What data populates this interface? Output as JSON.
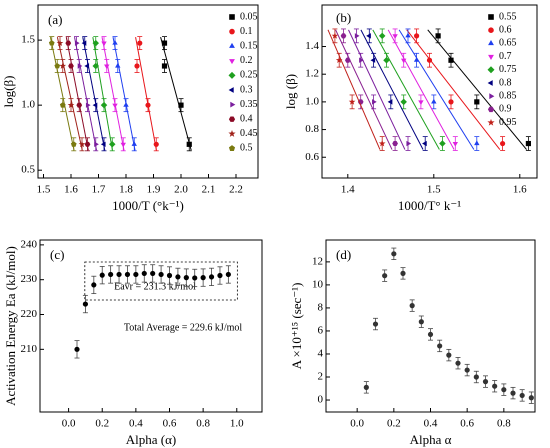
{
  "chart_data": [
    {
      "type": "scatter",
      "label": "(a)",
      "xlabel": "1000/T (°k⁻¹)",
      "ylabel": "log(β)",
      "xlim": [
        1.48,
        2.28
      ],
      "ylim": [
        0.44,
        1.77
      ],
      "xticks": [
        1.5,
        1.6,
        1.7,
        1.8,
        1.9,
        {
          "value": 2,
          "label": "2.0"
        },
        2.1,
        2.2
      ],
      "yticks": [
        0.5,
        {
          "value": 1,
          "label": "1.0"
        },
        1.5
      ],
      "yerr": 0.05,
      "fit": true,
      "legend": "upper right",
      "series": [
        {
          "name": "0.05",
          "color": "#000000",
          "marker": "square",
          "x": [
            1.94,
            1.94,
            2.0,
            2.03
          ],
          "values": [
            1.477,
            1.301,
            1.0,
            0.699
          ]
        },
        {
          "name": "0.1",
          "color": "#e8161b",
          "marker": "circle",
          "x": [
            1.85,
            1.84,
            1.88,
            1.91
          ],
          "values": [
            1.477,
            1.301,
            1.0,
            0.699
          ]
        },
        {
          "name": "0.15",
          "color": "#1f3ff0",
          "marker": "triangle",
          "x": [
            1.76,
            1.77,
            1.8,
            1.83
          ],
          "values": [
            1.477,
            1.301,
            1.0,
            0.699
          ]
        },
        {
          "name": "0.2",
          "color": "#e020e0",
          "marker": "triangle-down",
          "x": [
            1.72,
            1.73,
            1.76,
            1.79
          ],
          "values": [
            1.477,
            1.301,
            1.0,
            0.699
          ]
        },
        {
          "name": "0.25",
          "color": "#1fa01f",
          "marker": "diamond",
          "x": [
            1.69,
            1.69,
            1.72,
            1.75
          ],
          "values": [
            1.477,
            1.301,
            1.0,
            0.699
          ]
        },
        {
          "name": "0.3",
          "color": "#000080",
          "marker": "triangle-left",
          "x": [
            1.65,
            1.66,
            1.69,
            1.72
          ],
          "values": [
            1.477,
            1.301,
            1.0,
            0.699
          ]
        },
        {
          "name": "0.35",
          "color": "#7b1f9e",
          "marker": "triangle-right",
          "x": [
            1.62,
            1.63,
            1.66,
            1.69
          ],
          "values": [
            1.477,
            1.301,
            1.0,
            0.699
          ]
        },
        {
          "name": "0.4",
          "color": "#8b0a26",
          "marker": "hexagon",
          "x": [
            1.59,
            1.6,
            1.63,
            1.66
          ],
          "values": [
            1.477,
            1.301,
            1.0,
            0.699
          ]
        },
        {
          "name": "0.45",
          "color": "#a0221a",
          "marker": "star",
          "x": [
            1.56,
            1.57,
            1.6,
            1.64
          ],
          "values": [
            1.477,
            1.301,
            1.0,
            0.699
          ]
        },
        {
          "name": "0.5",
          "color": "#7a7a10",
          "marker": "pentagon",
          "x": [
            1.53,
            1.55,
            1.57,
            1.61
          ],
          "values": [
            1.477,
            1.301,
            1.0,
            0.699
          ]
        }
      ]
    },
    {
      "type": "scatter",
      "label": "(b)",
      "xlabel": "1000/T° k⁻¹",
      "ylabel": "log (β)",
      "xlim": [
        1.37,
        1.62
      ],
      "ylim": [
        0.45,
        1.7
      ],
      "xticks": [
        1.4,
        1.5,
        1.6
      ],
      "yticks": [
        0.6,
        0.8,
        {
          "value": 1,
          "label": "1.0"
        },
        1.2,
        1.4
      ],
      "yerr": 0.05,
      "fit": true,
      "legend": "upper right",
      "series": [
        {
          "name": "0.55",
          "color": "#000000",
          "marker": "square",
          "x": [
            1.505,
            1.52,
            1.55,
            1.61
          ],
          "values": [
            1.477,
            1.301,
            1.0,
            0.699
          ]
        },
        {
          "name": "0.6",
          "color": "#e8161b",
          "marker": "circle",
          "x": [
            1.48,
            1.495,
            1.52,
            1.58
          ],
          "values": [
            1.477,
            1.301,
            1.0,
            0.699
          ]
        },
        {
          "name": "0.65",
          "color": "#1f3ff0",
          "marker": "triangle",
          "x": [
            1.47,
            1.48,
            1.5,
            1.55
          ],
          "values": [
            1.477,
            1.301,
            1.0,
            0.699
          ]
        },
        {
          "name": "0.7",
          "color": "#e020e0",
          "marker": "triangle-down",
          "x": [
            1.455,
            1.465,
            1.485,
            1.525
          ],
          "values": [
            1.477,
            1.301,
            1.0,
            0.699
          ]
        },
        {
          "name": "0.75",
          "color": "#1fa01f",
          "marker": "diamond",
          "x": [
            1.44,
            1.445,
            1.465,
            1.51
          ],
          "values": [
            1.477,
            1.301,
            1.0,
            0.699
          ]
        },
        {
          "name": "0.8",
          "color": "#000080",
          "marker": "triangle-left",
          "x": [
            1.425,
            1.43,
            1.45,
            1.49
          ],
          "values": [
            1.477,
            1.301,
            1.0,
            0.699
          ]
        },
        {
          "name": "0.85",
          "color": "#7b1f9e",
          "marker": "triangle-right",
          "x": [
            1.41,
            1.415,
            1.43,
            1.47
          ],
          "values": [
            1.477,
            1.301,
            1.0,
            0.699
          ]
        },
        {
          "name": "0.9",
          "color": "#8a2090",
          "marker": "hexagon",
          "x": [
            1.395,
            1.4,
            1.415,
            1.455
          ],
          "values": [
            1.477,
            1.301,
            1.0,
            0.699
          ]
        },
        {
          "name": "0.95",
          "color": "#c0201a",
          "marker": "star",
          "x": [
            1.385,
            1.39,
            1.405,
            1.44
          ],
          "values": [
            1.477,
            1.301,
            1.0,
            0.699
          ]
        }
      ]
    },
    {
      "type": "scatter",
      "label": "(c)",
      "xlabel": "Alpha (α)",
      "ylabel": "Activation Energy Ea (kJ/mol)",
      "xlim": [
        -0.17,
        1.15
      ],
      "ylim": [
        192,
        241.4
      ],
      "xticks": [
        {
          "value": 0,
          "label": "0.0"
        },
        0.2,
        0.4,
        0.6,
        0.8,
        {
          "value": 1,
          "label": "1.0"
        }
      ],
      "yticks": [
        210,
        220,
        230,
        240
      ],
      "yerr": 2.5,
      "color": "#000000",
      "marker": "circle",
      "annotations": [
        "Eavr = 231.3 kJ/mol",
        "Total Average = 229.6 kJ/mol"
      ],
      "x": [
        0.05,
        0.1,
        0.15,
        0.2,
        0.25,
        0.3,
        0.35,
        0.4,
        0.45,
        0.5,
        0.55,
        0.6,
        0.65,
        0.7,
        0.75,
        0.8,
        0.85,
        0.9,
        0.95
      ],
      "values": [
        210,
        223,
        228.5,
        231.3,
        231.5,
        231.5,
        231.5,
        231.5,
        231.8,
        231.8,
        231.5,
        231.2,
        230.8,
        230.6,
        230.5,
        230.6,
        230.8,
        231.2,
        231.5
      ]
    },
    {
      "type": "scatter",
      "label": "(d)",
      "xlabel": "Alpha α",
      "ylabel": "A ×10⁺¹⁵ (sec⁻¹)",
      "xlim": [
        -0.17,
        0.97
      ],
      "ylim": [
        -1.04,
        13.9
      ],
      "xticks": [
        {
          "value": 0,
          "label": "0.0"
        },
        0.2,
        0.4,
        0.6,
        0.8
      ],
      "yticks": [
        0,
        2,
        4,
        6,
        8,
        10,
        12
      ],
      "yerr": 0.5,
      "color": "#333333",
      "marker": "circle",
      "x": [
        0.05,
        0.1,
        0.15,
        0.2,
        0.25,
        0.3,
        0.35,
        0.4,
        0.45,
        0.5,
        0.55,
        0.6,
        0.65,
        0.7,
        0.75,
        0.8,
        0.85,
        0.9,
        0.95
      ],
      "values": [
        1.1,
        6.6,
        10.8,
        12.7,
        11.0,
        8.2,
        6.8,
        5.7,
        4.7,
        3.9,
        3.2,
        2.6,
        2.0,
        1.6,
        1.2,
        0.9,
        0.6,
        0.4,
        0.2
      ]
    }
  ]
}
